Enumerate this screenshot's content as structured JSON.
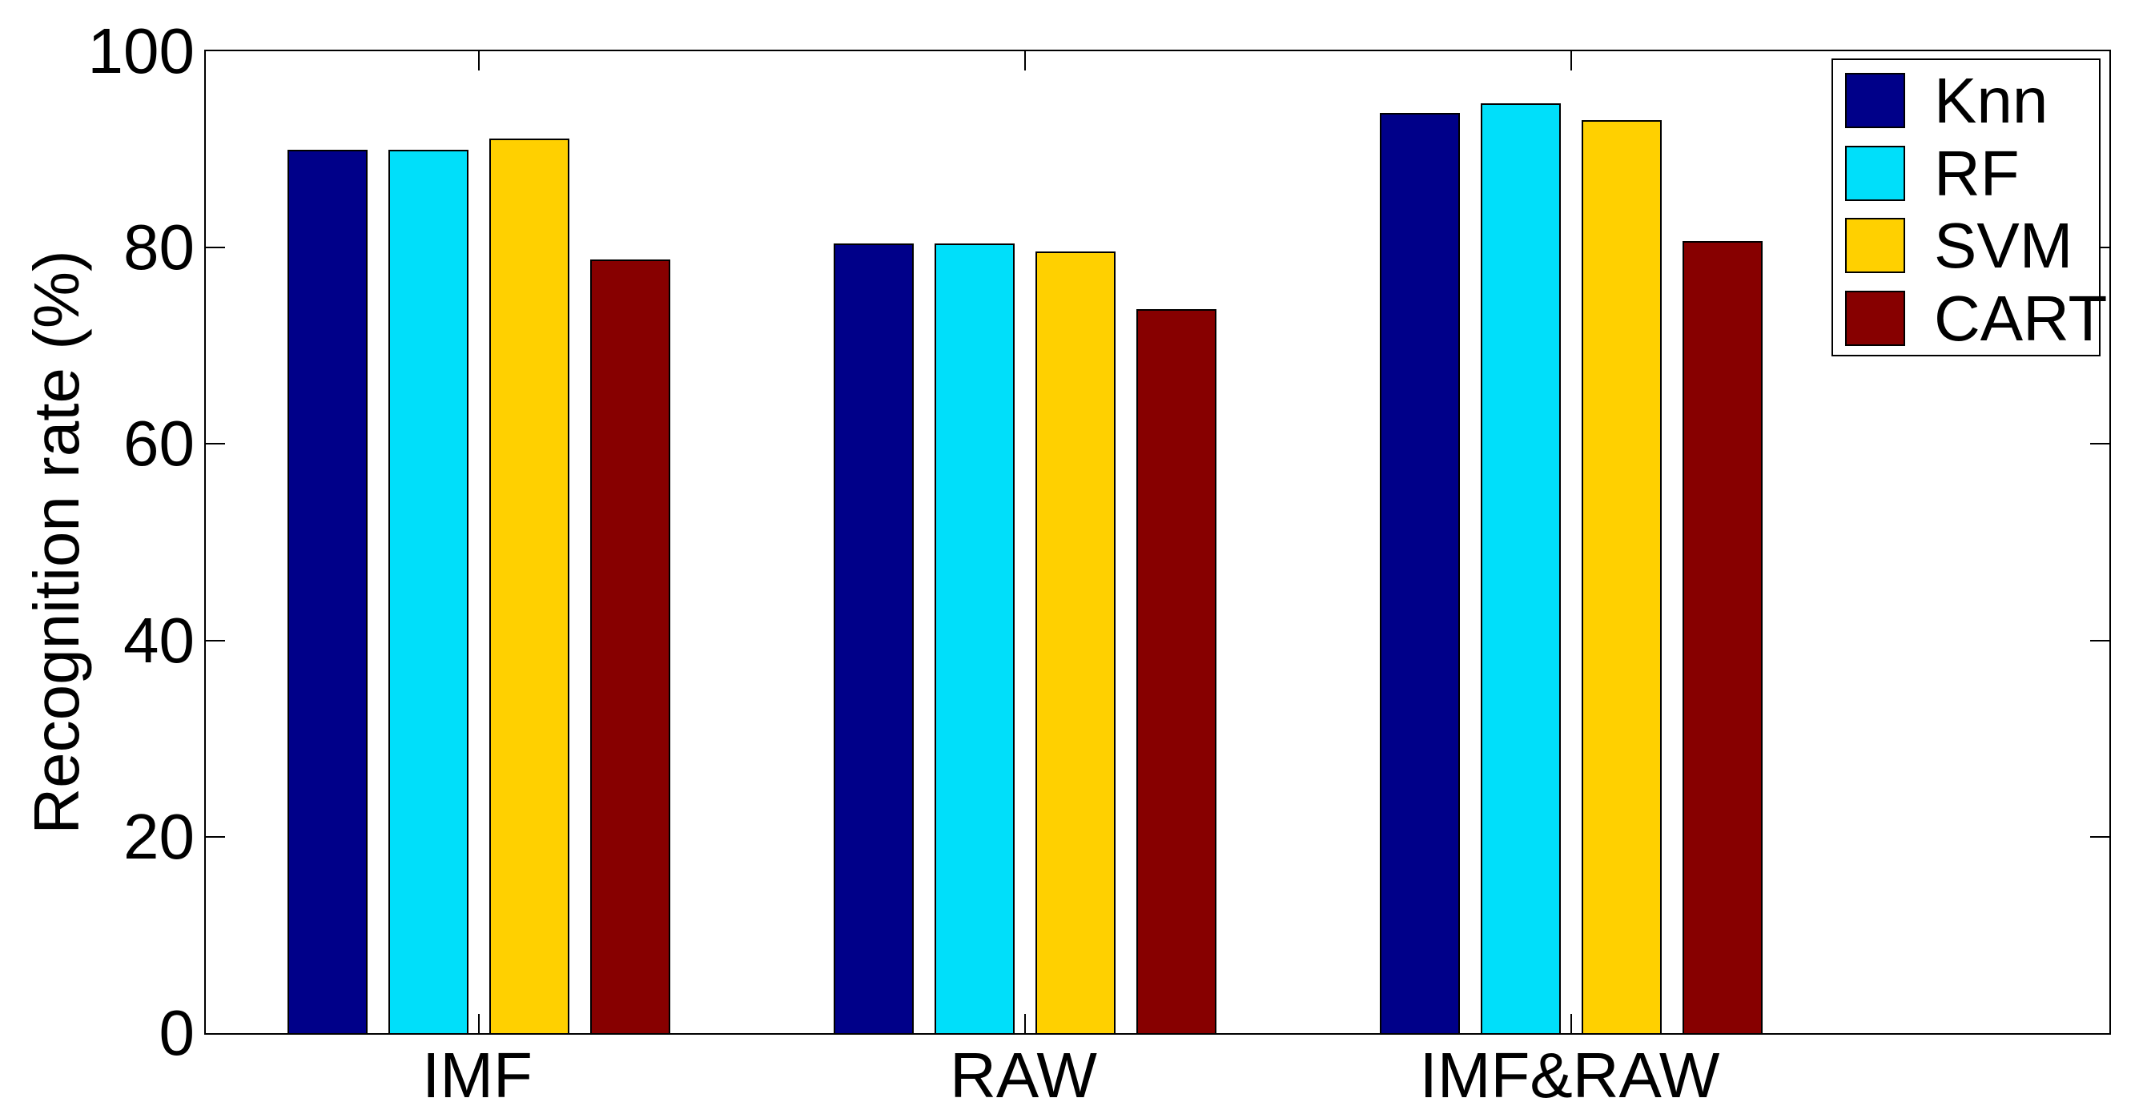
{
  "figure": {
    "background_color": "#FFFFFF",
    "axis_color": "#000000"
  },
  "chart_data": {
    "type": "bar",
    "title": "",
    "xlabel": "",
    "ylabel": "Recognition rate (%)",
    "categories": [
      "IMF",
      "RAW",
      "IMF&RAW"
    ],
    "series": [
      {
        "name": "Knn",
        "color": "#000089",
        "values": [
          90.0,
          80.4,
          93.7
        ]
      },
      {
        "name": "RF",
        "color": "#00DFFA",
        "values": [
          90.0,
          80.4,
          94.7
        ]
      },
      {
        "name": "SVM",
        "color": "#FFD000",
        "values": [
          91.1,
          79.6,
          93.0
        ]
      },
      {
        "name": "CART",
        "color": "#870000",
        "values": [
          78.8,
          73.7,
          80.7
        ]
      }
    ],
    "ylim": [
      0,
      100
    ],
    "ytick_step": 20,
    "ytick_labels": [
      "0",
      "20",
      "40",
      "60",
      "80",
      "100"
    ],
    "grid": false,
    "legend_position": "top-right",
    "bar_edge_color": "#000000"
  }
}
